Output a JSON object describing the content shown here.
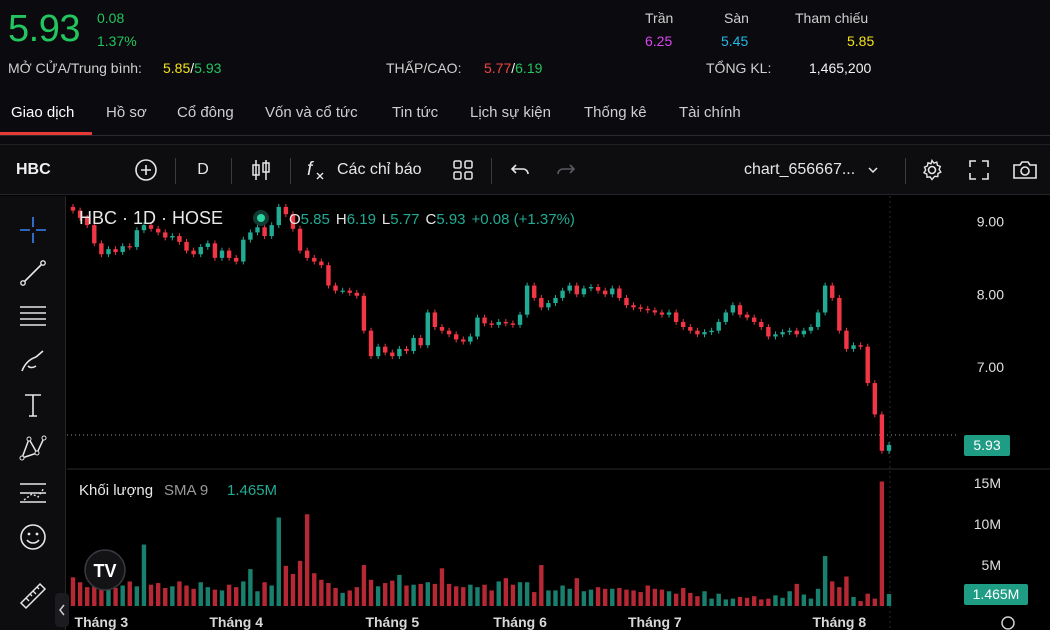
{
  "quote": {
    "price": "5.93",
    "change": "0.08",
    "change_pct": "1.37%",
    "open_avg_label": "MỞ CỬA/Trung bình:",
    "open": "5.85",
    "avg": "5.93",
    "low_high_label": "THẤP/CAO:",
    "low": "5.77",
    "high": "6.19",
    "ceiling_label": "Trần",
    "ceiling": "6.25",
    "floor_label": "Sàn",
    "floor": "5.45",
    "ref_label": "Tham chiếu",
    "ref": "5.85",
    "volume_label": "TỔNG KL:",
    "volume": "1,465,200",
    "slash": "/"
  },
  "tabs": [
    "Giao dịch",
    "Hồ sơ",
    "Cổ đông",
    "Vốn và cổ tức",
    "Tin tức",
    "Lịch sự kiện",
    "Thống kê",
    "Tài chính"
  ],
  "toolbar": {
    "symbol": "HBC",
    "interval": "D",
    "indicators_label": "Các chỉ báo",
    "layout_name": "chart_656667..."
  },
  "chart_legend": {
    "title": "HBC · 1D · HOSE",
    "o_label": "O",
    "o": "5.85",
    "h_label": "H",
    "h": "6.19",
    "l_label": "L",
    "l": "5.77",
    "c_label": "C",
    "c": "5.93",
    "change": "+0.08 (+1.37%)",
    "vol_title": "Khối lượng",
    "vol_sma": "SMA 9",
    "vol_value": "1.465M",
    "logo": "TV"
  },
  "chart_data": {
    "type": "candlestick",
    "price_axis": {
      "ticks": [
        9.0,
        8.0,
        7.0
      ],
      "tick_labels": [
        "9.00",
        "8.00",
        "7.00"
      ],
      "range": [
        5.6,
        9.35
      ]
    },
    "volume_axis": {
      "tick_labels": [
        "15M",
        "10M",
        "5M"
      ],
      "ticks": [
        15,
        10,
        5
      ],
      "unit": "M",
      "range": [
        0,
        15.5
      ]
    },
    "x_labels": [
      "Tháng 3",
      "Tháng 4",
      "Tháng 5",
      "Tháng 6",
      "Tháng 7",
      "Tháng 8"
    ],
    "last_price_label": "5.93",
    "last_volume_label": "1.465M",
    "colors": {
      "up": "#22ab94",
      "down": "#f23645",
      "up_vol": "#22ab94",
      "down_vol": "#f23645"
    },
    "closes": [
      9.15,
      9.05,
      8.95,
      8.7,
      8.55,
      8.62,
      8.58,
      8.66,
      8.65,
      8.88,
      8.95,
      8.9,
      8.85,
      8.78,
      8.8,
      8.72,
      8.6,
      8.55,
      8.65,
      8.7,
      8.5,
      8.6,
      8.5,
      8.45,
      8.75,
      8.85,
      8.92,
      8.8,
      8.95,
      9.2,
      9.1,
      8.9,
      8.6,
      8.5,
      8.45,
      8.4,
      8.12,
      8.05,
      8.05,
      8.02,
      7.98,
      7.5,
      7.15,
      7.28,
      7.2,
      7.15,
      7.25,
      7.22,
      7.4,
      7.3,
      7.75,
      7.55,
      7.5,
      7.45,
      7.38,
      7.35,
      7.42,
      7.68,
      7.6,
      7.58,
      7.62,
      7.6,
      7.58,
      7.72,
      8.12,
      7.95,
      7.82,
      7.88,
      7.95,
      8.05,
      8.12,
      8.0,
      8.08,
      8.1,
      8.05,
      8.0,
      8.08,
      7.95,
      7.85,
      7.82,
      7.8,
      7.78,
      7.75,
      7.72,
      7.75,
      7.62,
      7.55,
      7.5,
      7.45,
      7.48,
      7.5,
      7.62,
      7.75,
      7.85,
      7.72,
      7.68,
      7.62,
      7.55,
      7.42,
      7.45,
      7.48,
      7.5,
      7.45,
      7.5,
      7.55,
      7.75,
      8.12,
      7.95,
      7.5,
      7.25,
      7.3,
      7.28,
      6.78,
      6.35,
      5.85,
      5.93
    ],
    "volumes": [
      3.5,
      2.9,
      2.3,
      2.4,
      2.1,
      2.8,
      2.2,
      2.5,
      3.0,
      2.4,
      7.5,
      2.6,
      2.8,
      2.2,
      2.4,
      3.0,
      2.5,
      2.1,
      2.9,
      2.3,
      2.0,
      1.9,
      2.6,
      2.3,
      3.0,
      4.5,
      1.8,
      2.9,
      2.5,
      10.8,
      4.9,
      3.9,
      5.5,
      11.2,
      4.0,
      3.2,
      2.8,
      2.2,
      1.6,
      1.9,
      2.3,
      5.0,
      3.2,
      2.4,
      2.8,
      3.1,
      3.8,
      2.5,
      2.6,
      2.7,
      2.9,
      2.7,
      4.6,
      2.7,
      2.4,
      2.3,
      2.6,
      2.3,
      2.6,
      1.9,
      3.0,
      3.4,
      2.6,
      2.9,
      2.9,
      1.7,
      5.0,
      1.9,
      1.9,
      2.5,
      2.1,
      3.4,
      1.8,
      2.0,
      2.3,
      2.1,
      2.1,
      2.2,
      2.0,
      1.9,
      1.7,
      2.5,
      2.1,
      2.0,
      1.8,
      1.5,
      2.2,
      1.6,
      1.2,
      1.8,
      0.9,
      1.5,
      0.8,
      0.9,
      1.1,
      1.0,
      1.2,
      0.8,
      0.9,
      1.3,
      1.0,
      1.8,
      2.7,
      1.4,
      0.9,
      2.1,
      6.1,
      3.0,
      2.3,
      3.6,
      1.1,
      0.6,
      1.5,
      0.9,
      15.2,
      1.465
    ]
  }
}
